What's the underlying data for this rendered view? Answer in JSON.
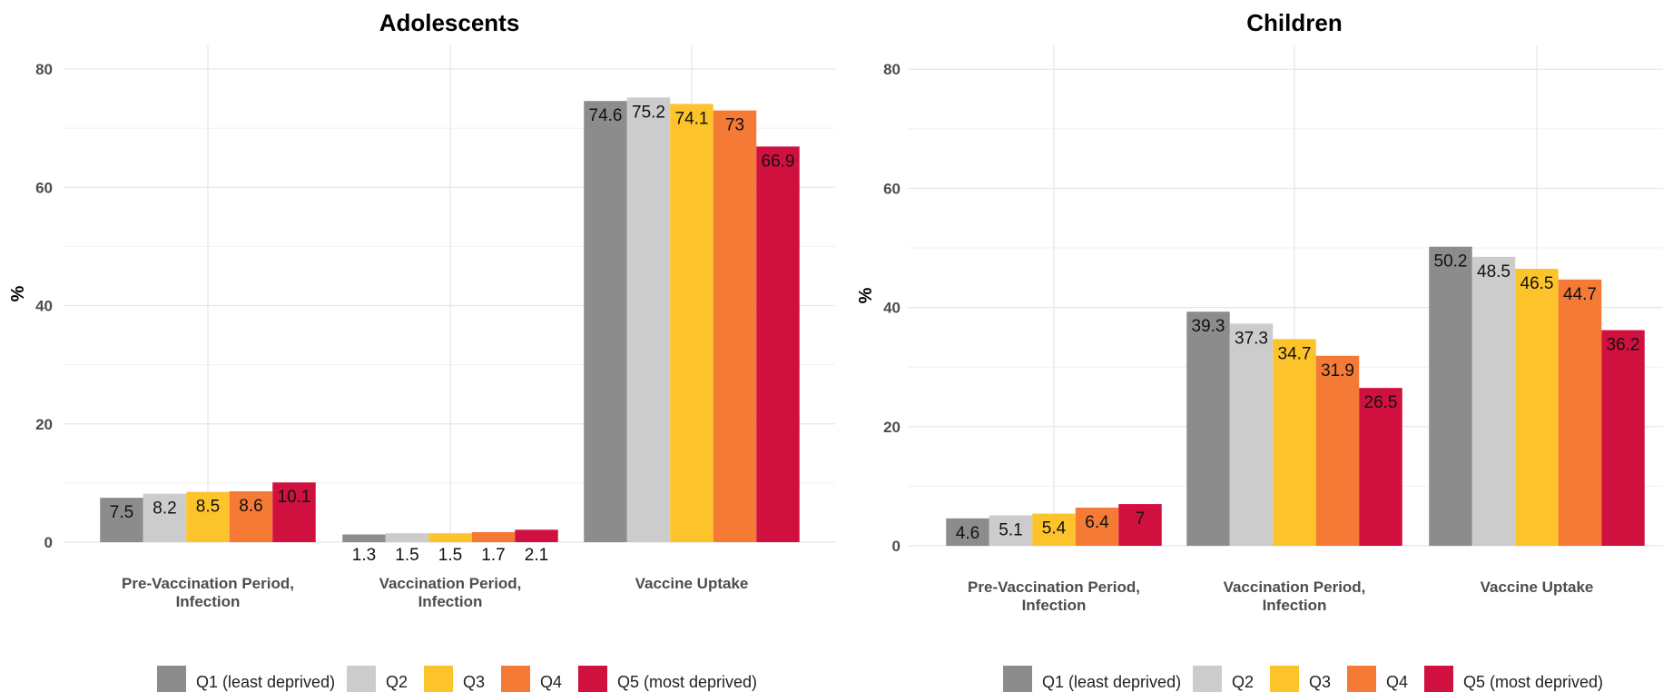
{
  "colors": {
    "Q1": "#8c8c8c",
    "Q2": "#cccccc",
    "Q3": "#fdc32b",
    "Q4": "#f47a35",
    "Q5": "#d0113f"
  },
  "legend": {
    "placement": "bottom",
    "entries": [
      "Q1 (least deprived)",
      "Q2",
      "Q3",
      "Q4",
      "Q5 (most deprived)"
    ]
  },
  "chart_data": [
    {
      "type": "bar",
      "title": "Adolescents",
      "ylabel": "%",
      "xlabel": "",
      "ylim": [
        0,
        84
      ],
      "yticks": [
        0,
        20,
        40,
        60,
        80
      ],
      "grid": true,
      "categories": [
        [
          "Pre-Vaccination Period,",
          "Infection"
        ],
        [
          "Vaccination Period,",
          "Infection"
        ],
        [
          "Vaccine Uptake"
        ]
      ],
      "series": [
        {
          "name": "Q1 (least deprived)",
          "values": [
            7.5,
            1.3,
            74.6
          ],
          "labels": [
            "7.5",
            "1.3",
            "74.6"
          ]
        },
        {
          "name": "Q2",
          "values": [
            8.2,
            1.5,
            75.2
          ],
          "labels": [
            "8.2",
            "1.5",
            "75.2"
          ]
        },
        {
          "name": "Q3",
          "values": [
            8.5,
            1.5,
            74.1
          ],
          "labels": [
            "8.5",
            "1.5",
            "74.1"
          ]
        },
        {
          "name": "Q4",
          "values": [
            8.6,
            1.7,
            73
          ],
          "labels": [
            "8.6",
            "1.7",
            "73"
          ]
        },
        {
          "name": "Q5 (most deprived)",
          "values": [
            10.1,
            2.1,
            66.9
          ],
          "labels": [
            "10.1",
            "2.1",
            "66.9"
          ]
        }
      ]
    },
    {
      "type": "bar",
      "title": "Children",
      "ylabel": "%",
      "xlabel": "",
      "ylim": [
        0,
        84
      ],
      "yticks": [
        0,
        20,
        40,
        60,
        80
      ],
      "grid": true,
      "categories": [
        [
          "Pre-Vaccination Period,",
          "Infection"
        ],
        [
          "Vaccination Period,",
          "Infection"
        ],
        [
          "Vaccine Uptake"
        ]
      ],
      "series": [
        {
          "name": "Q1 (least deprived)",
          "values": [
            4.6,
            39.3,
            50.2
          ],
          "labels": [
            "4.6",
            "39.3",
            "50.2"
          ]
        },
        {
          "name": "Q2",
          "values": [
            5.1,
            37.3,
            48.5
          ],
          "labels": [
            "5.1",
            "37.3",
            "48.5"
          ]
        },
        {
          "name": "Q3",
          "values": [
            5.4,
            34.7,
            46.5
          ],
          "labels": [
            "5.4",
            "34.7",
            "46.5"
          ]
        },
        {
          "name": "Q4",
          "values": [
            6.4,
            31.9,
            44.7
          ],
          "labels": [
            "6.4",
            "31.9",
            "44.7"
          ]
        },
        {
          "name": "Q5 (most deprived)",
          "values": [
            7,
            26.5,
            36.2
          ],
          "labels": [
            "7",
            "26.5",
            "36.2"
          ]
        }
      ]
    }
  ]
}
